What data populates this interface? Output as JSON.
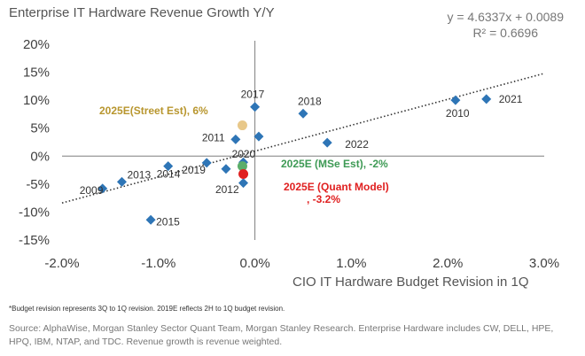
{
  "chart_data": {
    "type": "scatter",
    "title": "Enterprise IT Hardware Revenue Growth Y/Y",
    "xlabel": "CIO IT Hardware Budget Revision in 1Q",
    "ylabel": "",
    "xlim": [
      -2.0,
      3.0
    ],
    "ylim": [
      -15,
      20
    ],
    "x_ticks": [
      -2.0,
      -1.0,
      0.0,
      1.0,
      2.0,
      3.0
    ],
    "x_tick_labels": [
      "-2.0%",
      "-1.0%",
      "0.0%",
      "1.0%",
      "2.0%",
      "3.0%"
    ],
    "y_ticks": [
      20,
      15,
      10,
      5,
      0,
      -5,
      -10,
      -15
    ],
    "y_tick_labels": [
      "20%",
      "15%",
      "10%",
      "5%",
      "0%",
      "-5%",
      "-10%",
      "-15%"
    ],
    "grid": false,
    "trendline": {
      "equation": "y = 4.6337x + 0.0089",
      "r_squared": "R² = 0.6696",
      "x_range": [
        -2.0,
        3.0
      ],
      "slope": 4.6337,
      "intercept": 0.89
    },
    "points": [
      {
        "label": "2009",
        "x": -1.58,
        "y": -5.8
      },
      {
        "label": "2013",
        "x": -1.38,
        "y": -4.6
      },
      {
        "label": "2014",
        "x": -0.9,
        "y": -1.8
      },
      {
        "label": "2015",
        "x": -1.08,
        "y": -11.4
      },
      {
        "label": "2019",
        "x": -0.5,
        "y": -1.2
      },
      {
        "label": "2012",
        "x": -0.3,
        "y": -2.3
      },
      {
        "label": "2011",
        "x": -0.2,
        "y": 3.0
      },
      {
        "label": "2017",
        "x": 0.0,
        "y": 8.8
      },
      {
        "label": "",
        "x": 0.04,
        "y": 3.5
      },
      {
        "label": "2020",
        "x": -0.12,
        "y": -1.1
      },
      {
        "label": "",
        "x": -0.12,
        "y": -4.8
      },
      {
        "label": "2018",
        "x": 0.5,
        "y": 7.6
      },
      {
        "label": "2022",
        "x": 0.75,
        "y": 2.4
      },
      {
        "label": "2010",
        "x": 2.08,
        "y": 10.0
      },
      {
        "label": "2021",
        "x": 2.4,
        "y": 10.2
      }
    ],
    "highlights": [
      {
        "label": "2025E(Street Est), 6%",
        "x": -0.13,
        "y": 5.5,
        "color": "#E8C88A",
        "label_color": "#B8962E"
      },
      {
        "label": "2025E (MSe Est), -2%",
        "x": -0.13,
        "y": -1.8,
        "color": "#5BAE6A",
        "label_color": "#3E9A55"
      },
      {
        "label_line1": "2025E (Quant Model)",
        "label_line2": ", -3.2%",
        "x": -0.12,
        "y": -3.2,
        "color": "#E02020",
        "label_color": "#E02020"
      }
    ],
    "colors": {
      "point": "#2E75B6",
      "axis": "#7F7F7F",
      "trend": "#333333"
    }
  },
  "note": "*Budget revision represents 3Q to 1Q revision. 2019E reflects 2H to 1Q budget revision.",
  "source": "Source: AlphaWise, Morgan Stanley Sector Quant Team, Morgan Stanley Research. Enterprise Hardware includes CW, DELL, HPE, HPQ, IBM, NTAP, and TDC. Revenue growth is revenue weighted."
}
